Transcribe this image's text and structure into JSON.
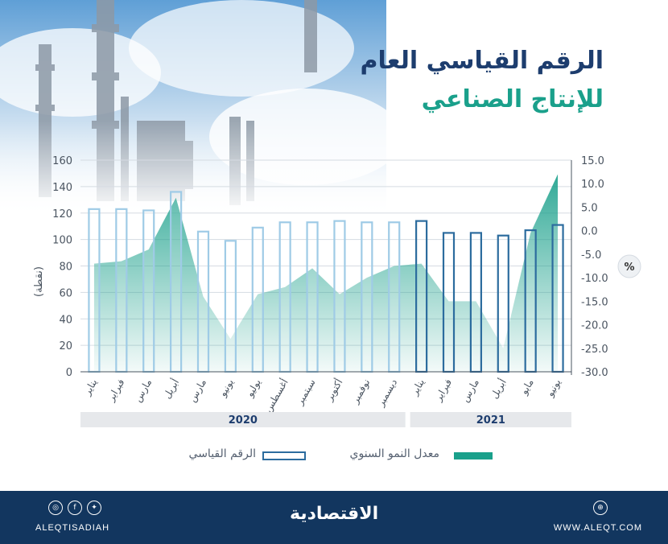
{
  "title": {
    "line1": "الرقم القياسي العام",
    "line2": "للإنتاج الصناعي"
  },
  "colors": {
    "navy": "#12365f",
    "teal": "#1aa08b",
    "bar_light": "#9fcbe6",
    "bar_dark": "#2c6c9e",
    "year_band": "#e6e8eb"
  },
  "chart_data": {
    "type": "bar",
    "categories": [
      "يناير",
      "فبراير",
      "مارس",
      "أبريل",
      "مارس",
      "يونيو",
      "يوليو",
      "أغسطس",
      "سبتمبر",
      "أكتوبر",
      "نوفمبر",
      "ديسمبر",
      "يناير",
      "فبراير",
      "مارس",
      "أبريل",
      "مايو",
      "يونيو"
    ],
    "years": [
      {
        "label": "2020",
        "start": 0,
        "end": 11
      },
      {
        "label": "2021",
        "start": 12,
        "end": 17
      }
    ],
    "series": [
      {
        "name": "الرقم القياسي",
        "type": "bar",
        "axis": "left",
        "values": [
          123,
          123,
          122,
          136,
          106,
          99,
          109,
          113,
          113,
          114,
          113,
          113,
          114,
          105,
          105,
          103,
          107,
          111
        ]
      },
      {
        "name": "معدل النمو السنوي",
        "type": "area",
        "axis": "right",
        "values": [
          -7,
          -6.5,
          -4,
          7,
          -14,
          -23,
          -13.5,
          -12,
          -8,
          -13.5,
          -10,
          -7.5,
          -7,
          -15,
          -15,
          -25,
          -0.5,
          12
        ]
      }
    ],
    "left_axis": {
      "label": "(نقطة)",
      "min": 0,
      "max": 160,
      "ticks": [
        "0",
        "20",
        "40",
        "60",
        "80",
        "100",
        "120",
        "140",
        "160"
      ]
    },
    "right_axis": {
      "label": "%",
      "min": -30,
      "max": 15,
      "ticks": [
        "-30.0",
        "-25.0",
        "-20.0",
        "-15.0",
        "-10.0",
        "-5.0",
        "0.0",
        "5.0",
        "10.0",
        "15.0"
      ]
    },
    "grid": true
  },
  "legend": {
    "growth": "معدل النمو السنوي",
    "index": "الرقم القياسي"
  },
  "footer": {
    "site": "WWW.ALEQT.COM",
    "handle": "ALEQTISADIAH",
    "logo_text": "الاقتصادية"
  }
}
